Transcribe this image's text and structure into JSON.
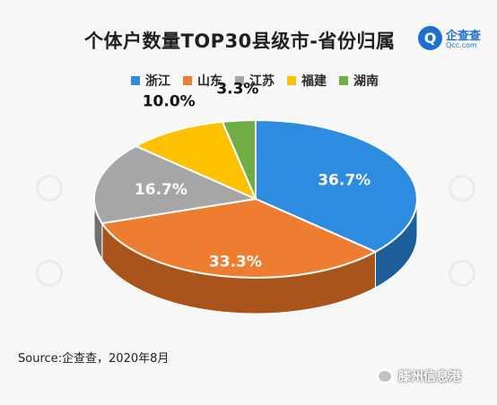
{
  "brand": {
    "mark": "Q",
    "name": "企查查",
    "url": "Qcc.com"
  },
  "source": "Source:企查查，2020年8月",
  "watermark": {
    "label": "滕州信息港"
  },
  "chart_data": {
    "type": "pie",
    "title": "个体户数量TOP30县级市-省份归属",
    "legend_position": "top",
    "slices": [
      {
        "label": "浙江",
        "value": 36.7,
        "display": "36.7%",
        "color": "#2d8be0",
        "side": "#1d5f9a"
      },
      {
        "label": "山东",
        "value": 33.3,
        "display": "33.3%",
        "color": "#ee7d31",
        "side": "#a9541c"
      },
      {
        "label": "江苏",
        "value": 16.7,
        "display": "16.7%",
        "color": "#a6a6a6",
        "side": "#6f6f6f"
      },
      {
        "label": "福建",
        "value": 10.0,
        "display": "10.0%",
        "color": "#ffc000",
        "side": "#b38600"
      },
      {
        "label": "湖南",
        "value": 3.3,
        "display": "3.3%",
        "color": "#70ad47",
        "side": "#4a7a2c"
      }
    ]
  }
}
